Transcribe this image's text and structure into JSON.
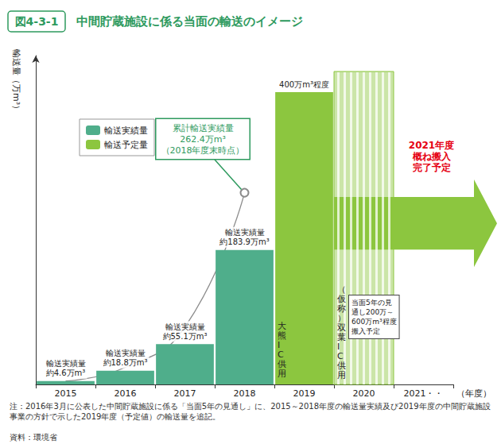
{
  "chart_data": {
    "type": "bar",
    "figure_label": "図4-3-1",
    "title": "中間貯蔵施設に係る当面の輸送のイメージ",
    "y_label": "輸送量（万m³）",
    "x_label": "（年度）",
    "categories": [
      "2015",
      "2016",
      "2017",
      "2018",
      "2019",
      "2020",
      "2021・・"
    ],
    "series": [
      {
        "name": "輸送実績量",
        "type": "bar",
        "color": "#4fae8b",
        "values": [
          4.6,
          18.8,
          55.1,
          183.9,
          null,
          null,
          null
        ],
        "value_labels": [
          "輸送実績量\n約4.6万m³",
          "輸送実績量\n約18.8万m³",
          "輸送実績量\n約55.1万m³",
          "輸送実績量\n約183.9万m³",
          null,
          null,
          null
        ]
      },
      {
        "name": "輸送予定量",
        "type": "bar",
        "color": "#8cc63f",
        "values": [
          null,
          null,
          null,
          null,
          400,
          null,
          null
        ],
        "value_labels": [
          null,
          null,
          null,
          null,
          "400万m³程度",
          null,
          null
        ]
      },
      {
        "type": "line",
        "color": "#8c8c8c",
        "marker": "circle",
        "values": [
          4.6,
          23.4,
          78.5,
          262.4,
          null,
          null,
          null
        ]
      }
    ],
    "annotations": [
      {
        "text": "累計輸送実績量\n262.4万m³\n（2018年度末時点）"
      },
      {
        "text": "大熊IC供用"
      },
      {
        "text": "（仮称）双葉IC供用"
      },
      {
        "text": "当面5年の見\n通し200万～\n600万m³程度\n搬入予定"
      },
      {
        "text": "2021年度\n概ね搬入\n完了予定",
        "color": "#e60012"
      }
    ],
    "ylim": [
      0,
      450
    ],
    "yticks": [],
    "grid": false,
    "legend": "upper left",
    "data_labels": true,
    "tick_labels": "x",
    "note": "注：2016年3月に公表した中間貯蔵施設に係る「当面5年の見通し」に、2015～2018年度の輸送量実績及び2019年度の中間貯蔵施設事業の方針で示した2019年度（予定値）の輸送量を追記。",
    "source": "資料：環境省"
  }
}
